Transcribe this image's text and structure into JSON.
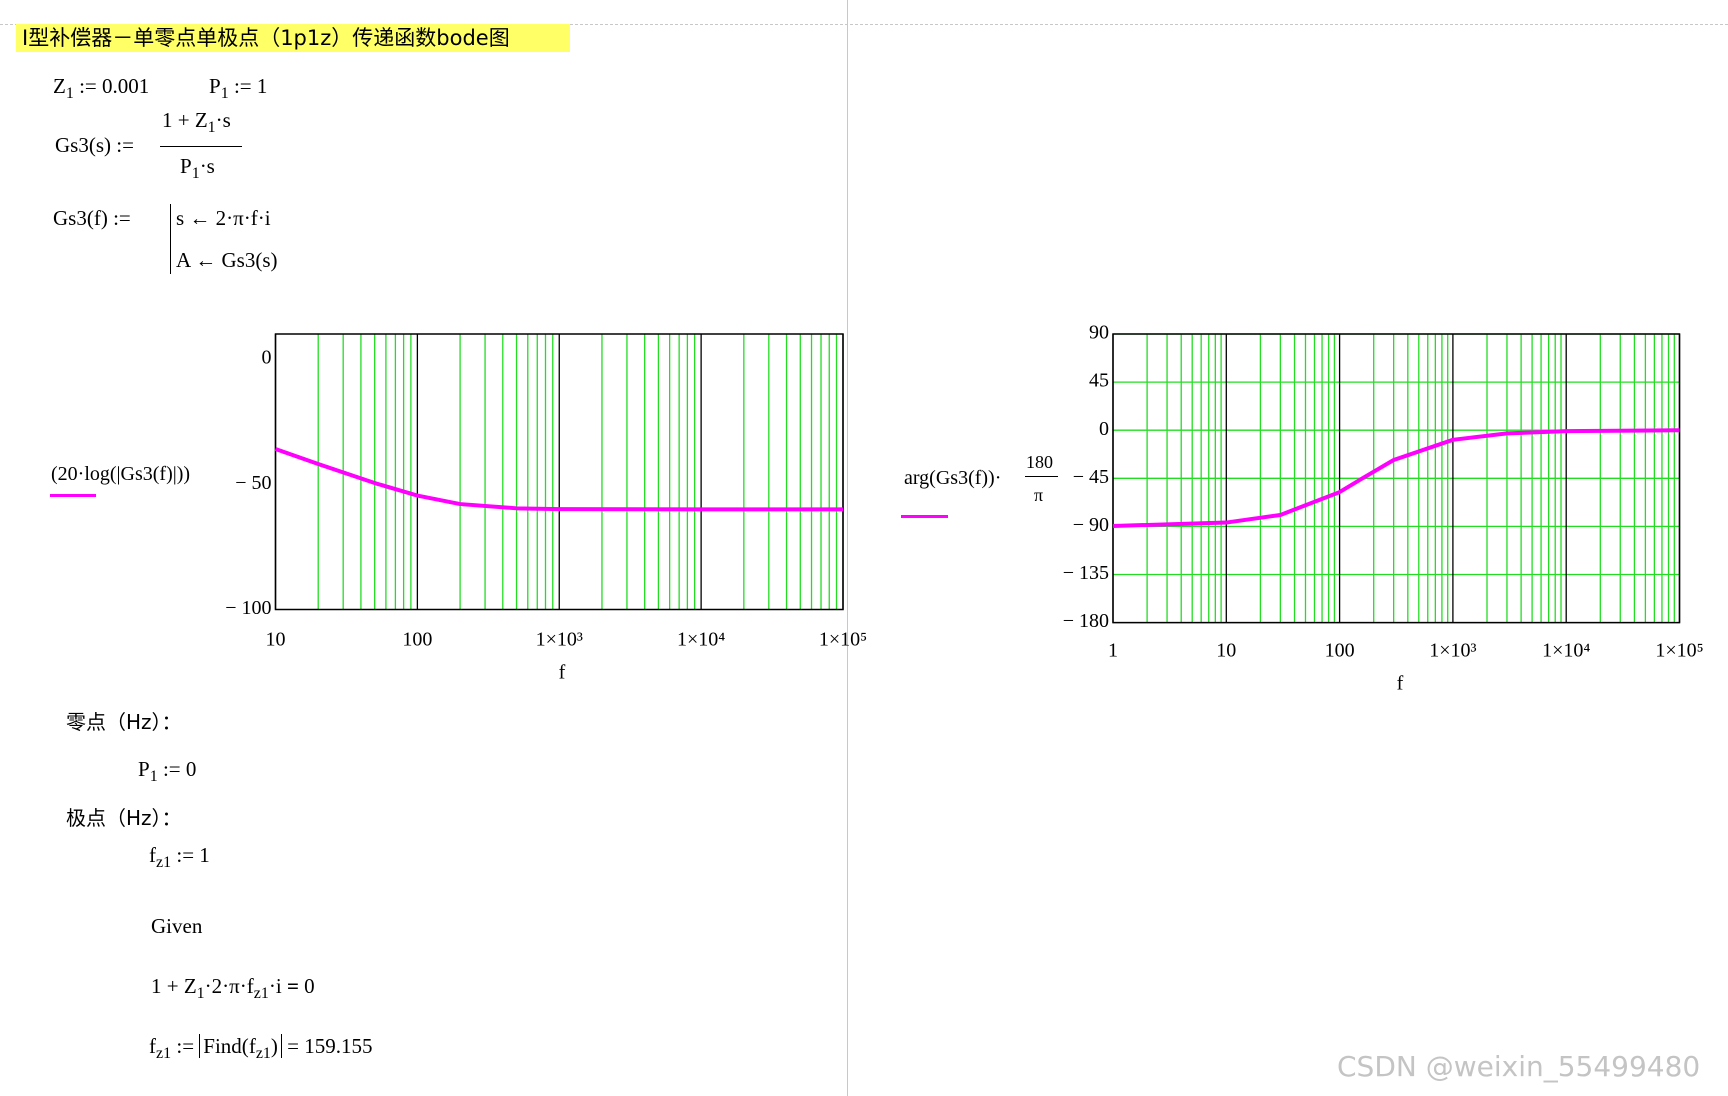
{
  "header": {
    "title": "Ⅰ型补偿器－单零点单极点（1p1z）传递函数bode图"
  },
  "definitions": {
    "z1": [
      "Z",
      "1",
      ":=",
      "0.001"
    ],
    "p1": [
      "P",
      "1",
      ":=",
      "1"
    ],
    "gs3s": [
      "Gs3(s)",
      ":=",
      "1 + Z",
      "1",
      "·s",
      "P",
      "1",
      "·s"
    ],
    "gs3f": [
      "Gs3(f)",
      ":=",
      "s ← 2·π·f·i",
      "A ← Gs3(s)"
    ]
  },
  "zeros": {
    "label": "零点（Hz）：",
    "p1": [
      "P",
      "1",
      ":=",
      "0"
    ]
  },
  "poles": {
    "label": "极点（Hz）：",
    "fz1": [
      "f",
      "z1",
      ":=",
      "1"
    ],
    "given": "Given",
    "equation": [
      "1 + Z",
      "1",
      "·2·π·f",
      "z1",
      "·i",
      "=",
      "0"
    ],
    "solution": [
      "f",
      "z1",
      ":=",
      "Find(",
      "f",
      "z1",
      ")",
      "=",
      "159.155"
    ]
  },
  "watermark": "CSDN @weixin_55499480",
  "chart_data": [
    {
      "type": "line",
      "ylabel": "(20·log(|Gs3(f)|))",
      "xlabel": "f",
      "x": [
        10,
        20,
        50,
        100,
        200,
        500,
        1000,
        10000,
        100000
      ],
      "values": [
        -35.9,
        -41.9,
        -49.5,
        -54.5,
        -57.9,
        -59.6,
        -59.9,
        -60.0,
        -60.0
      ],
      "color": "#ff00ff",
      "xscale": "log",
      "xlim": [
        10,
        100000
      ],
      "xticks": [
        10,
        100,
        {
          "value": 1000,
          "label": "1×10³"
        },
        {
          "value": 10000,
          "label": "1×10⁴"
        },
        {
          "value": 100000,
          "label": "1×10⁵"
        }
      ],
      "ylim": [
        -100,
        10
      ],
      "yticks": [
        0,
        {
          "value": -50,
          "label": "− 50"
        },
        {
          "value": -100,
          "label": "− 100"
        }
      ],
      "xgrid": true,
      "ygrid": false,
      "grid_color": "#22dd22"
    },
    {
      "type": "line",
      "ylabel": [
        "arg(Gs3(f))·",
        "180",
        "π"
      ],
      "xlabel": "f",
      "x": [
        1,
        10,
        30,
        100,
        159,
        300,
        1000,
        3000,
        10000,
        100000
      ],
      "values": [
        -89.6,
        -86.4,
        -79.3,
        -57.9,
        -45.0,
        -27.9,
        -9.0,
        -3.0,
        -0.9,
        -0.1
      ],
      "color": "#ff00ff",
      "xscale": "log",
      "xlim": [
        1,
        100000
      ],
      "xticks": [
        1,
        10,
        100,
        {
          "value": 1000,
          "label": "1×10³"
        },
        {
          "value": 10000,
          "label": "1×10⁴"
        },
        {
          "value": 100000,
          "label": "1×10⁵"
        }
      ],
      "ylim": [
        -180,
        90
      ],
      "yticks": [
        90,
        45,
        0,
        {
          "value": -45,
          "label": "− 45"
        },
        {
          "value": -90,
          "label": "− 90"
        },
        {
          "value": -135,
          "label": "− 135"
        },
        {
          "value": -180,
          "label": "− 180"
        }
      ],
      "xgrid": true,
      "ygrid": true,
      "grid_color": "#22dd22"
    }
  ]
}
